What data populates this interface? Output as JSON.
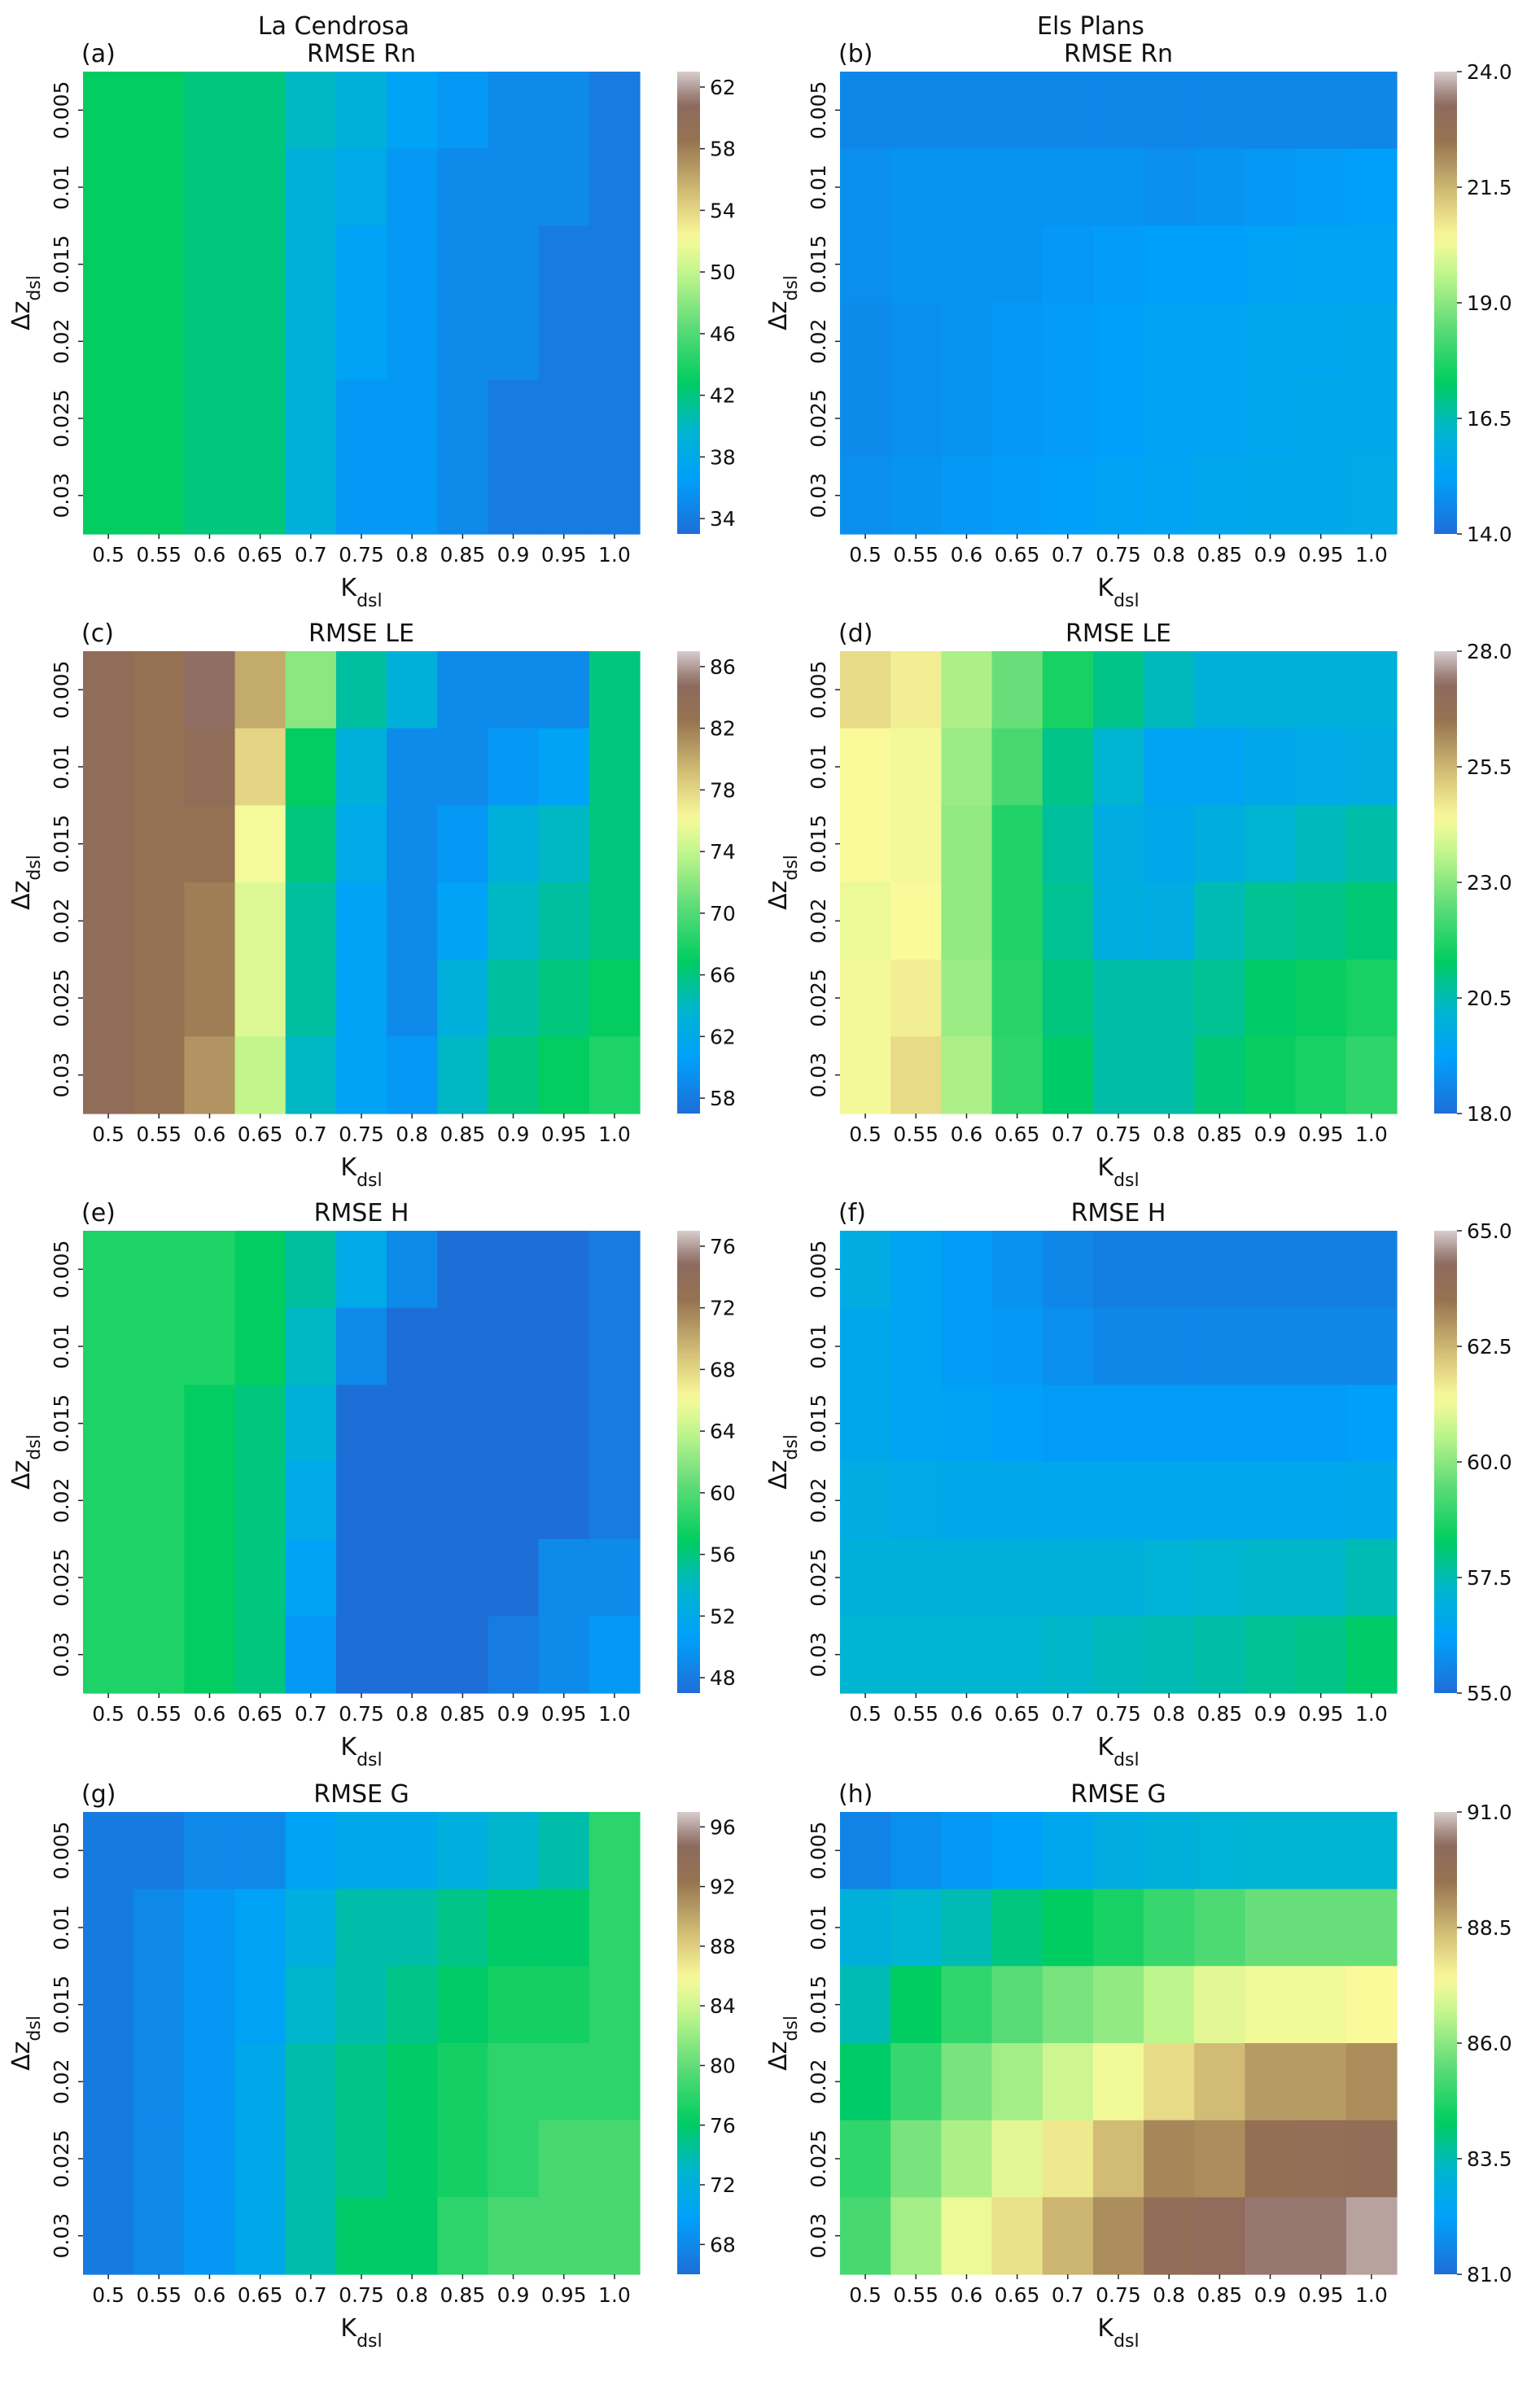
{
  "column_titles": [
    "La Cendrosa",
    "Els Plans"
  ],
  "chart_data": [
    {
      "type": "heatmap",
      "panel": "(a)",
      "title": "RMSE Rn",
      "xlabel": "K_dsl",
      "ylabel": "Δz_dsl",
      "x": [
        "0.5",
        "0.55",
        "0.6",
        "0.65",
        "0.7",
        "0.75",
        "0.8",
        "0.85",
        "0.9",
        "0.95",
        "1.0"
      ],
      "y": [
        "0.005",
        "0.01",
        "0.015",
        "0.02",
        "0.025",
        "0.03"
      ],
      "colorbar": {
        "min": 33,
        "max": 63,
        "ticks": [
          34,
          38,
          42,
          46,
          50,
          54,
          58,
          62
        ]
      },
      "values": [
        [
          43,
          43,
          42,
          42,
          40,
          39,
          37,
          36,
          35,
          35,
          34
        ],
        [
          43,
          43,
          42,
          42,
          39,
          38,
          36,
          35,
          35,
          35,
          34
        ],
        [
          43,
          43,
          42,
          42,
          39,
          37,
          36,
          35,
          35,
          34,
          34
        ],
        [
          43,
          43,
          42,
          42,
          39,
          37,
          36,
          35,
          35,
          34,
          34
        ],
        [
          43,
          43,
          42,
          42,
          39,
          36,
          36,
          35,
          34,
          34,
          34
        ],
        [
          43,
          43,
          42,
          42,
          39,
          36,
          36,
          35,
          34,
          34,
          34
        ]
      ]
    },
    {
      "type": "heatmap",
      "panel": "(b)",
      "title": "RMSE Rn",
      "xlabel": "K_dsl",
      "ylabel": "Δz_dsl",
      "x": [
        "0.5",
        "0.55",
        "0.6",
        "0.65",
        "0.7",
        "0.75",
        "0.8",
        "0.85",
        "0.9",
        "0.95",
        "1.0"
      ],
      "y": [
        "0.005",
        "0.01",
        "0.015",
        "0.02",
        "0.025",
        "0.03"
      ],
      "colorbar": {
        "min": 14.0,
        "max": 24.0,
        "ticks": [
          14.0,
          16.5,
          19.0,
          21.5,
          24.0
        ]
      },
      "values": [
        [
          14.6,
          14.6,
          14.6,
          14.6,
          14.6,
          14.6,
          14.6,
          14.6,
          14.6,
          14.6,
          14.6
        ],
        [
          14.8,
          14.9,
          14.9,
          14.9,
          14.9,
          14.9,
          14.8,
          14.9,
          15.0,
          15.1,
          15.2
        ],
        [
          14.8,
          14.9,
          14.9,
          14.9,
          15.0,
          15.1,
          15.2,
          15.2,
          15.3,
          15.4,
          15.4
        ],
        [
          14.7,
          14.8,
          14.9,
          15.0,
          15.1,
          15.2,
          15.3,
          15.4,
          15.5,
          15.5,
          15.6
        ],
        [
          14.7,
          14.8,
          14.9,
          15.0,
          15.1,
          15.2,
          15.3,
          15.4,
          15.5,
          15.6,
          15.6
        ],
        [
          14.8,
          14.9,
          15.0,
          15.1,
          15.2,
          15.3,
          15.4,
          15.5,
          15.6,
          15.6,
          15.7
        ]
      ]
    },
    {
      "type": "heatmap",
      "panel": "(c)",
      "title": "RMSE LE",
      "xlabel": "K_dsl",
      "ylabel": "Δz_dsl",
      "x": [
        "0.5",
        "0.55",
        "0.6",
        "0.65",
        "0.7",
        "0.75",
        "0.8",
        "0.85",
        "0.9",
        "0.95",
        "1.0"
      ],
      "y": [
        "0.005",
        "0.01",
        "0.015",
        "0.02",
        "0.025",
        "0.03"
      ],
      "colorbar": {
        "min": 57,
        "max": 87,
        "ticks": [
          58,
          62,
          66,
          70,
          74,
          78,
          82,
          86
        ]
      },
      "values": [
        [
          84,
          83,
          85,
          80,
          72,
          65,
          63,
          59,
          59,
          59,
          66
        ],
        [
          84,
          83,
          84,
          78,
          67,
          63,
          59,
          59,
          60,
          61,
          66
        ],
        [
          84,
          83,
          83,
          76,
          66,
          62,
          59,
          60,
          63,
          64,
          66
        ],
        [
          84,
          83,
          82,
          75,
          65,
          61,
          59,
          61,
          64,
          65,
          66
        ],
        [
          84,
          83,
          82,
          75,
          65,
          61,
          59,
          63,
          65,
          66,
          67
        ],
        [
          84,
          83,
          81,
          74,
          64,
          61,
          60,
          64,
          66,
          67,
          68
        ]
      ]
    },
    {
      "type": "heatmap",
      "panel": "(d)",
      "title": "RMSE LE",
      "xlabel": "K_dsl",
      "ylabel": "Δz_dsl",
      "x": [
        "0.5",
        "0.55",
        "0.6",
        "0.65",
        "0.7",
        "0.75",
        "0.8",
        "0.85",
        "0.9",
        "0.95",
        "1.0"
      ],
      "y": [
        "0.005",
        "0.01",
        "0.015",
        "0.02",
        "0.025",
        "0.03"
      ],
      "colorbar": {
        "min": 18.0,
        "max": 28.0,
        "ticks": [
          18.0,
          20.5,
          23.0,
          25.5,
          28.0
        ]
      },
      "values": [
        [
          24.9,
          24.6,
          23.4,
          22.6,
          21.6,
          20.9,
          20.4,
          20.0,
          20.0,
          20.0,
          20.0
        ],
        [
          24.4,
          24.3,
          23.2,
          22.2,
          20.9,
          20.2,
          19.4,
          19.4,
          19.6,
          19.7,
          19.8
        ],
        [
          24.4,
          24.3,
          23.1,
          21.7,
          20.7,
          19.8,
          19.6,
          19.9,
          20.2,
          20.4,
          20.6
        ],
        [
          24.2,
          24.4,
          23.1,
          21.7,
          20.8,
          19.9,
          19.8,
          20.5,
          20.8,
          20.9,
          21.1
        ],
        [
          24.3,
          24.6,
          23.2,
          21.8,
          21.0,
          20.6,
          20.6,
          20.8,
          21.2,
          21.4,
          21.6
        ],
        [
          24.3,
          24.9,
          23.4,
          21.9,
          21.2,
          20.6,
          20.6,
          21.1,
          21.4,
          21.6,
          21.9
        ]
      ]
    },
    {
      "type": "heatmap",
      "panel": "(e)",
      "title": "RMSE H",
      "xlabel": "K_dsl",
      "ylabel": "Δz_dsl",
      "x": [
        "0.5",
        "0.55",
        "0.6",
        "0.65",
        "0.7",
        "0.75",
        "0.8",
        "0.85",
        "0.9",
        "0.95",
        "1.0"
      ],
      "y": [
        "0.005",
        "0.01",
        "0.015",
        "0.02",
        "0.025",
        "0.03"
      ],
      "colorbar": {
        "min": 47,
        "max": 77,
        "ticks": [
          48,
          52,
          56,
          60,
          64,
          68,
          72,
          76
        ]
      },
      "values": [
        [
          58,
          58,
          58,
          57,
          55,
          52,
          49,
          47,
          47,
          47,
          48
        ],
        [
          58,
          58,
          58,
          57,
          54,
          49,
          47,
          47,
          47,
          47,
          48
        ],
        [
          58,
          58,
          57,
          56,
          53,
          47,
          47,
          47,
          47,
          47,
          48
        ],
        [
          58,
          58,
          57,
          56,
          52,
          47,
          47,
          47,
          47,
          47,
          48
        ],
        [
          58,
          58,
          57,
          56,
          51,
          47,
          47,
          47,
          47,
          49,
          49
        ],
        [
          58,
          58,
          57,
          56,
          50,
          47,
          47,
          47,
          48,
          49,
          50
        ]
      ]
    },
    {
      "type": "heatmap",
      "panel": "(f)",
      "title": "RMSE H",
      "xlabel": "K_dsl",
      "ylabel": "Δz_dsl",
      "x": [
        "0.5",
        "0.55",
        "0.6",
        "0.65",
        "0.7",
        "0.75",
        "0.8",
        "0.85",
        "0.9",
        "0.95",
        "1.0"
      ],
      "y": [
        "0.005",
        "0.01",
        "0.015",
        "0.02",
        "0.025",
        "0.03"
      ],
      "colorbar": {
        "min": 55.0,
        "max": 65.0,
        "ticks": [
          55.0,
          57.5,
          60.0,
          62.5,
          65.0
        ]
      },
      "values": [
        [
          56.8,
          56.4,
          56.1,
          55.9,
          55.6,
          55.4,
          55.4,
          55.4,
          55.4,
          55.4,
          55.4
        ],
        [
          56.6,
          56.4,
          56.1,
          56.0,
          55.8,
          55.6,
          55.6,
          55.6,
          55.6,
          55.6,
          55.6
        ],
        [
          56.6,
          56.4,
          56.3,
          56.2,
          56.1,
          56.1,
          56.1,
          56.1,
          56.1,
          56.1,
          56.2
        ],
        [
          56.8,
          56.7,
          56.6,
          56.6,
          56.5,
          56.5,
          56.5,
          56.5,
          56.5,
          56.5,
          56.6
        ],
        [
          57.0,
          57.0,
          57.0,
          57.0,
          57.0,
          57.0,
          57.1,
          57.2,
          57.3,
          57.3,
          57.5
        ],
        [
          57.2,
          57.2,
          57.2,
          57.2,
          57.3,
          57.4,
          57.5,
          57.6,
          57.8,
          57.9,
          58.2
        ]
      ]
    },
    {
      "type": "heatmap",
      "panel": "(g)",
      "title": "RMSE G",
      "xlabel": "K_dsl",
      "ylabel": "Δz_dsl",
      "x": [
        "0.5",
        "0.55",
        "0.6",
        "0.65",
        "0.7",
        "0.75",
        "0.8",
        "0.85",
        "0.9",
        "0.95",
        "1.0"
      ],
      "y": [
        "0.005",
        "0.01",
        "0.015",
        "0.02",
        "0.025",
        "0.03"
      ],
      "colorbar": {
        "min": 66,
        "max": 97,
        "ticks": [
          68,
          72,
          76,
          80,
          84,
          88,
          92,
          96
        ]
      },
      "values": [
        [
          67,
          67,
          68,
          68,
          70,
          71,
          71,
          72,
          73,
          74,
          78
        ],
        [
          67,
          68,
          69,
          70,
          72,
          74,
          74,
          75,
          76,
          76,
          78
        ],
        [
          67,
          68,
          69,
          70,
          73,
          74,
          75,
          76,
          77,
          77,
          78
        ],
        [
          67,
          68,
          69,
          71,
          74,
          75,
          76,
          77,
          78,
          78,
          78
        ],
        [
          67,
          68,
          69,
          71,
          74,
          75,
          76,
          77,
          78,
          79,
          79
        ],
        [
          67,
          68,
          69,
          71,
          74,
          76,
          76,
          78,
          79,
          79,
          79
        ]
      ]
    },
    {
      "type": "heatmap",
      "panel": "(h)",
      "title": "RMSE G",
      "xlabel": "K_dsl",
      "ylabel": "Δz_dsl",
      "x": [
        "0.5",
        "0.55",
        "0.6",
        "0.65",
        "0.7",
        "0.75",
        "0.8",
        "0.85",
        "0.9",
        "0.95",
        "1.0"
      ],
      "y": [
        "0.005",
        "0.01",
        "0.015",
        "0.02",
        "0.025",
        "0.03"
      ],
      "colorbar": {
        "min": 81.0,
        "max": 91.0,
        "ticks": [
          81.0,
          83.5,
          86.0,
          88.5,
          91.0
        ]
      },
      "values": [
        [
          81.5,
          81.8,
          82.0,
          82.2,
          82.5,
          82.8,
          83.0,
          83.1,
          83.2,
          83.2,
          83.2
        ],
        [
          83.0,
          83.2,
          83.5,
          84.0,
          84.3,
          84.6,
          85.0,
          85.3,
          85.6,
          85.6,
          85.6
        ],
        [
          83.5,
          84.3,
          84.9,
          85.4,
          85.8,
          86.1,
          86.6,
          87.1,
          87.3,
          87.3,
          87.4
        ],
        [
          84.2,
          85.0,
          85.8,
          86.3,
          86.8,
          87.3,
          87.9,
          88.4,
          88.9,
          88.9,
          89.1
        ],
        [
          84.9,
          85.8,
          86.4,
          87.1,
          87.7,
          88.4,
          89.2,
          89.1,
          89.7,
          89.8,
          89.9
        ],
        [
          85.2,
          86.3,
          87.2,
          87.8,
          88.5,
          89.1,
          89.9,
          90.1,
          90.4,
          90.4,
          90.7
        ]
      ]
    }
  ]
}
